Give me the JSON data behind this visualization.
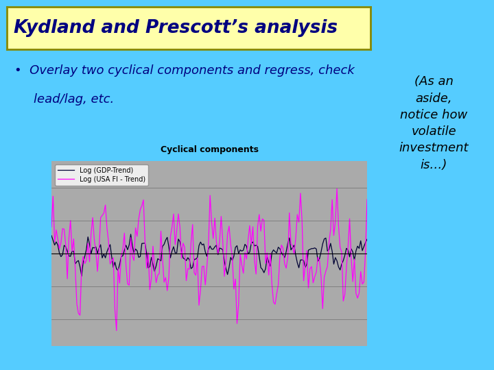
{
  "title": "Kydland and Prescott’s analysis",
  "bullet_text1": "Overlay two cyclical components and regress, check",
  "bullet_text2": "lead/lag, etc.",
  "chart_title": "Cyclical components",
  "legend_gdp": "Log (GDP-Trend)",
  "legend_fi": "Log (USA FI - Trend)",
  "aside_line1": "(As an",
  "aside_line2": "aside,",
  "aside_line3": "notice how",
  "aside_line4": "volatile",
  "aside_line5": "investment",
  "aside_line6": "is…)",
  "bg_color": "#55CCFF",
  "title_bg": "#FFFFAA",
  "title_border": "#888800",
  "chart_bg": "#AAAAAA",
  "chart_outer_bg": "#FFFFFF",
  "gdp_color": "#000033",
  "fi_color": "#FF00FF",
  "aside_color": "#000000",
  "title_color": "#000080",
  "bullet_color": "#000080",
  "n_points": 200,
  "seed": 7
}
